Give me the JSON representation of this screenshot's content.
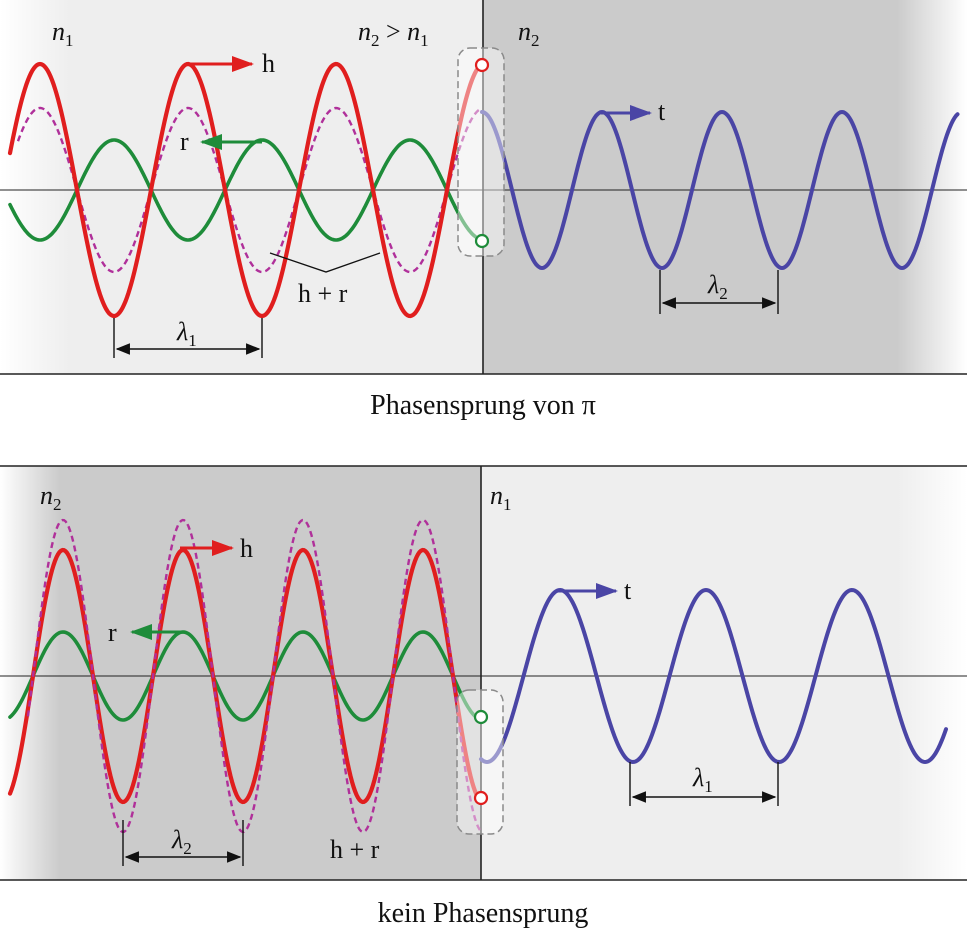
{
  "colors": {
    "incident": "#e01e1e",
    "reflected": "#1e8c3a",
    "transmitted": "#4a45a5",
    "superposition": "#b0309a",
    "medium_low": "#eeeeee",
    "medium_high": "#cbcbcb"
  },
  "top": {
    "region_left": {
      "symbol": "n",
      "sub": "1"
    },
    "region_right": {
      "symbol": "n",
      "sub": "2"
    },
    "condition": {
      "a": "n",
      "a_sub": "2",
      "op": " > ",
      "b": "n",
      "b_sub": "1"
    },
    "label_h": "h",
    "label_r": "r",
    "label_t": "t",
    "label_sum": "h + r",
    "lambda_left": {
      "symbol": "λ",
      "sub": "1"
    },
    "lambda_right": {
      "symbol": "λ",
      "sub": "2"
    },
    "caption": "Phasensprung von π"
  },
  "bottom": {
    "region_left": {
      "symbol": "n",
      "sub": "2"
    },
    "region_right": {
      "symbol": "n",
      "sub": "1"
    },
    "label_h": "h",
    "label_r": "r",
    "label_t": "t",
    "label_sum": "h + r",
    "lambda_left": {
      "symbol": "λ",
      "sub": "2"
    },
    "lambda_right": {
      "symbol": "λ",
      "sub": "1"
    },
    "caption": "kein Phasensprung"
  }
}
